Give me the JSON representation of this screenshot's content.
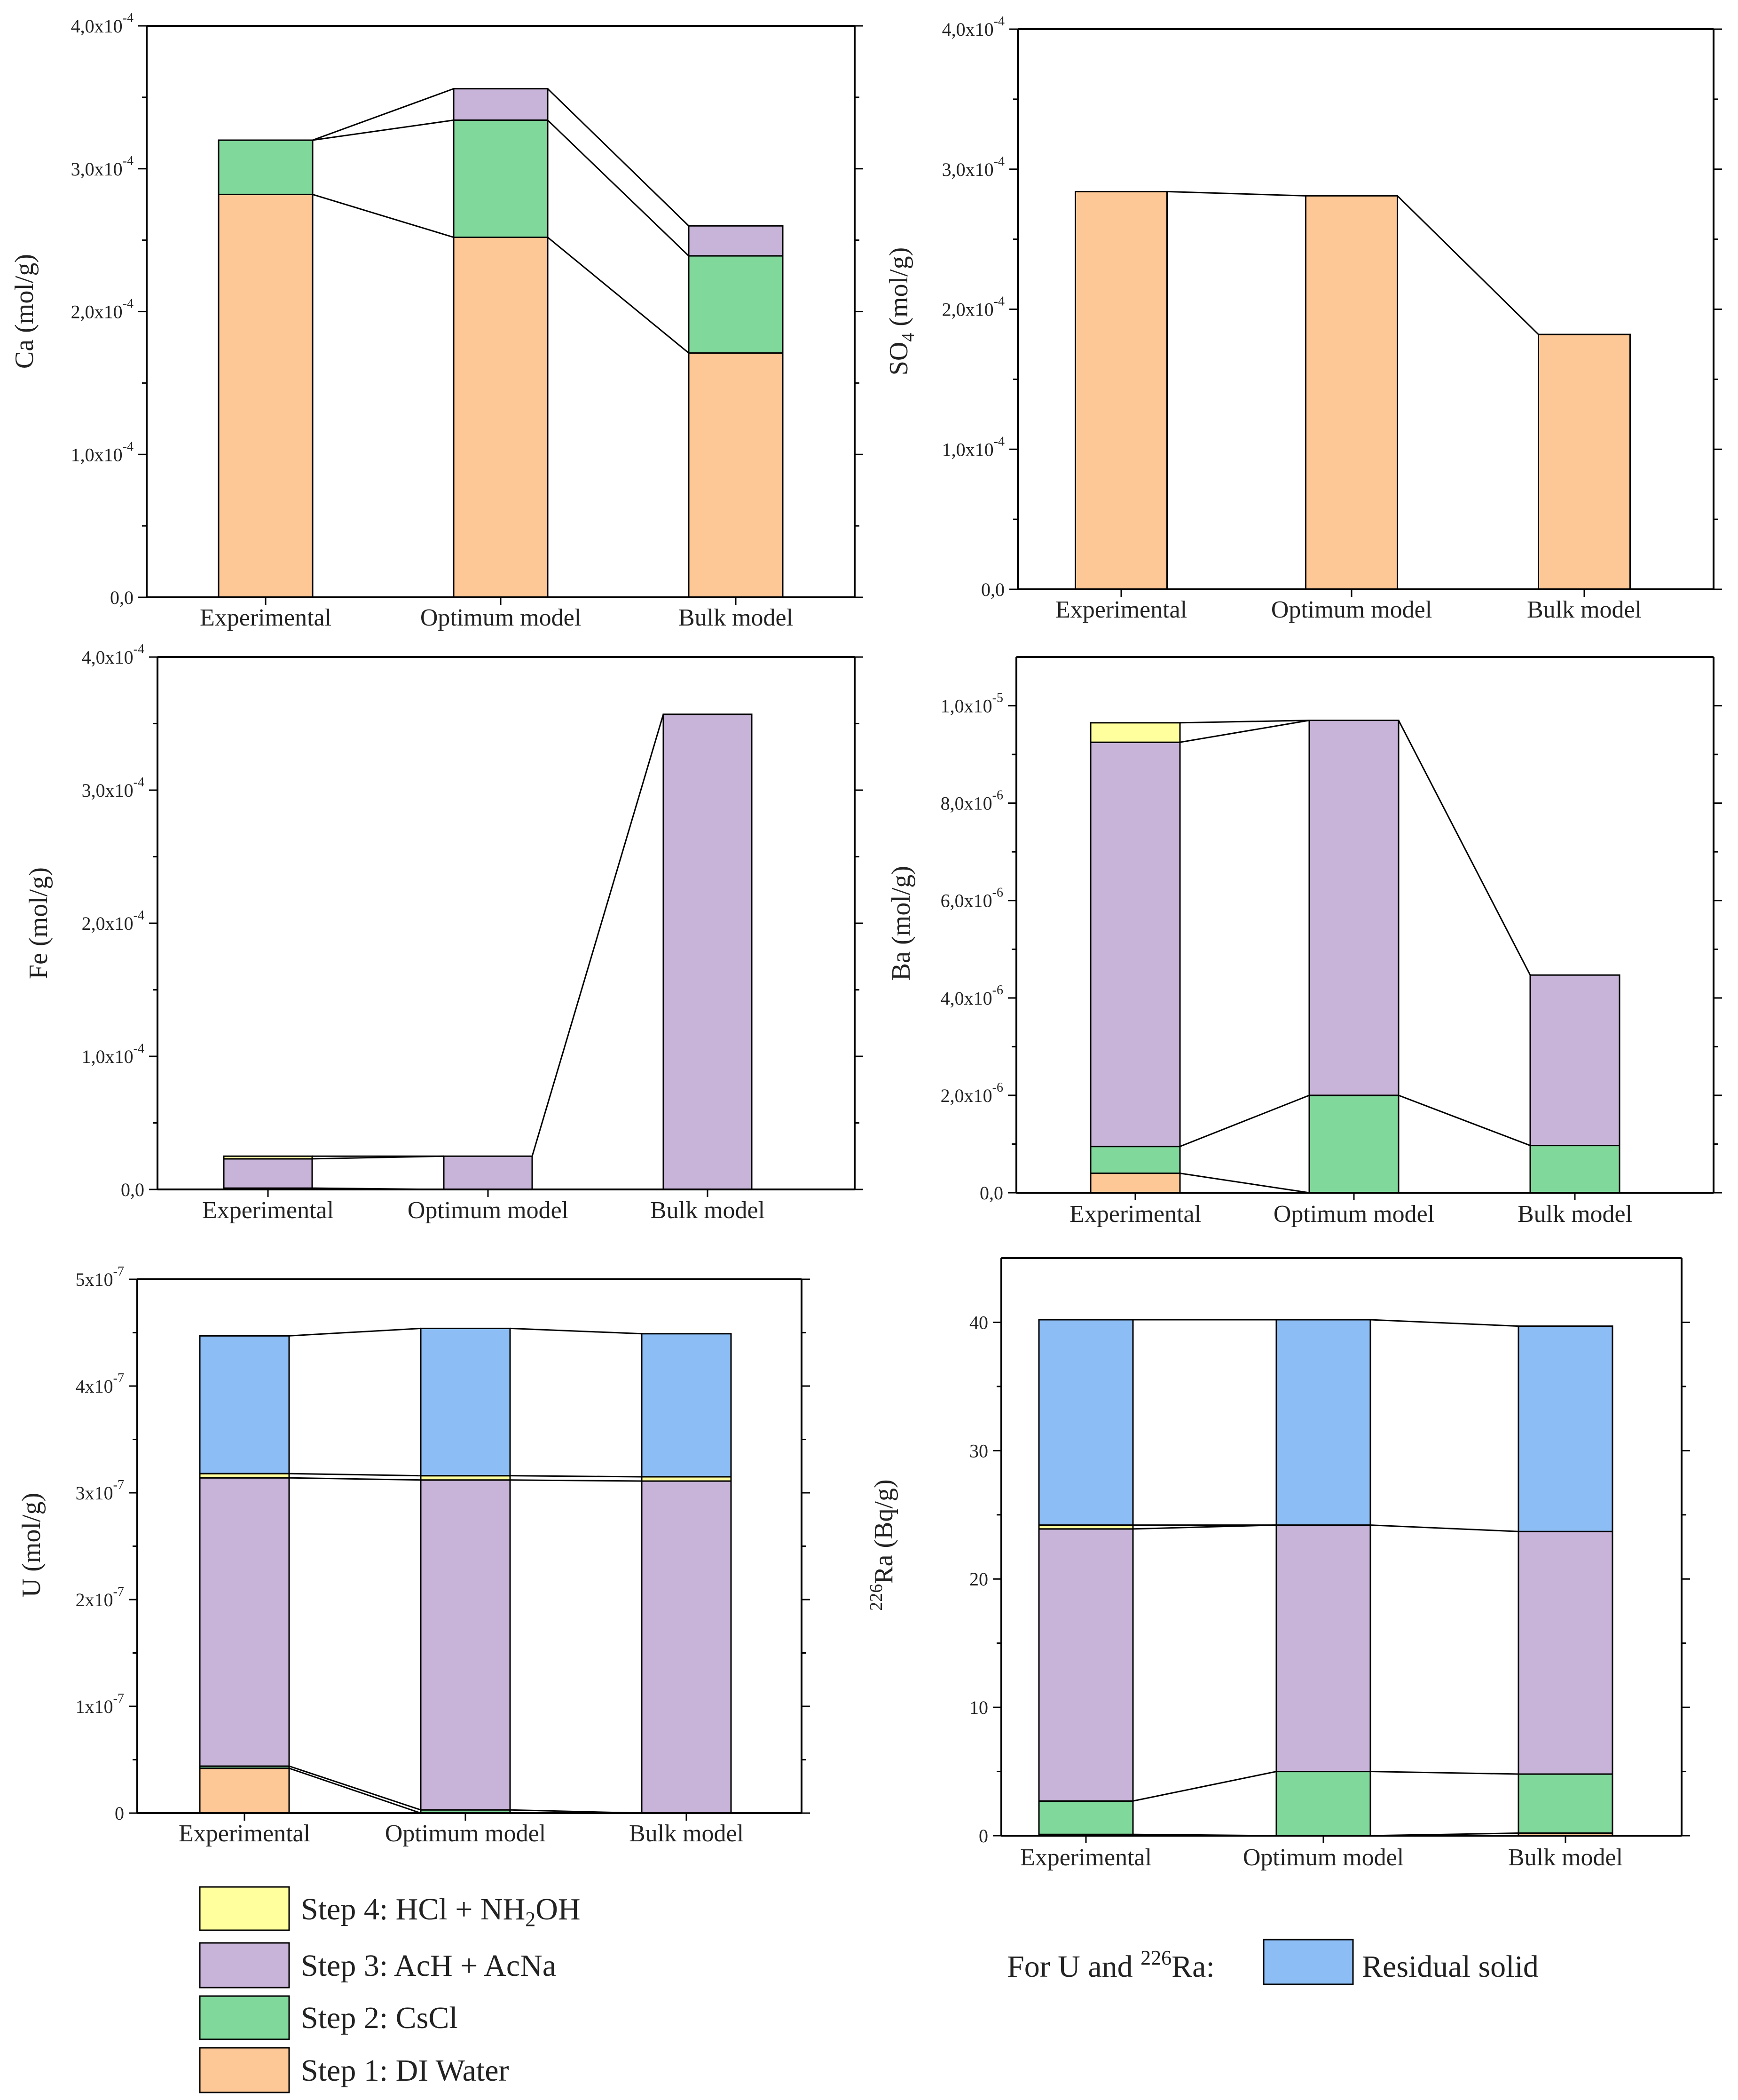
{
  "colors": {
    "step1": "#FDC895",
    "step2": "#80D89B",
    "step3": "#C8B4D8",
    "step4": "#FFFF9E",
    "residual": "#8CBDF4",
    "stroke": "#000000"
  },
  "chart_data": [
    {
      "id": "ca",
      "type": "bar",
      "stacked": true,
      "title": "",
      "ylabel": "Ca (mol/g)",
      "xlabel": "",
      "categories": [
        "Experimental",
        "Optimum model",
        "Bulk model"
      ],
      "ylim": [
        0,
        0.0004
      ],
      "yticks": [
        {
          "value": 0,
          "label": "0,0"
        },
        {
          "value": 0.0001,
          "label": "1,0x10",
          "exp": "-4"
        },
        {
          "value": 0.0002,
          "label": "2,0x10",
          "exp": "-4"
        },
        {
          "value": 0.0003,
          "label": "3,0x10",
          "exp": "-4"
        },
        {
          "value": 0.0004,
          "label": "4,0x10",
          "exp": "-4"
        }
      ],
      "series": [
        {
          "name": "Step 1: DI Water",
          "key": "step1",
          "values": [
            0.000282,
            0.000252,
            0.000171
          ]
        },
        {
          "name": "Step 2: CsCl",
          "key": "step2",
          "values": [
            3.8e-05,
            8.2e-05,
            6.8e-05
          ]
        },
        {
          "name": "Step 3: AcH + AcNa",
          "key": "step3",
          "values": [
            0,
            2.2e-05,
            2.1e-05
          ]
        }
      ]
    },
    {
      "id": "so4",
      "type": "bar",
      "stacked": true,
      "title": "",
      "ylabel": "SO",
      "ylabel_sub": "4",
      "ylabel_tail": " (mol/g)",
      "xlabel": "",
      "categories": [
        "Experimental",
        "Optimum model",
        "Bulk model"
      ],
      "ylim": [
        0,
        0.0004
      ],
      "yticks": [
        {
          "value": 0,
          "label": "0,0"
        },
        {
          "value": 0.0001,
          "label": "1,0x10",
          "exp": "-4"
        },
        {
          "value": 0.0002,
          "label": "2,0x10",
          "exp": "-4"
        },
        {
          "value": 0.0003,
          "label": "3,0x10",
          "exp": "-4"
        },
        {
          "value": 0.0004,
          "label": "4,0x10",
          "exp": "-4"
        }
      ],
      "series": [
        {
          "name": "Step 1: DI Water",
          "key": "step1",
          "values": [
            0.000284,
            0.000281,
            0.000182
          ]
        }
      ]
    },
    {
      "id": "fe",
      "type": "bar",
      "stacked": true,
      "title": "",
      "ylabel": "Fe (mol/g)",
      "xlabel": "",
      "categories": [
        "Experimental",
        "Optimum model",
        "Bulk model"
      ],
      "ylim": [
        0,
        0.0004
      ],
      "yticks": [
        {
          "value": 0,
          "label": "0,0"
        },
        {
          "value": 0.0001,
          "label": "1,0x10",
          "exp": "-4"
        },
        {
          "value": 0.0002,
          "label": "2,0x10",
          "exp": "-4"
        },
        {
          "value": 0.0003,
          "label": "3,0x10",
          "exp": "-4"
        },
        {
          "value": 0.0004,
          "label": "4,0x10",
          "exp": "-4"
        }
      ],
      "series": [
        {
          "name": "Step 1: DI Water",
          "key": "step1",
          "values": [
            1e-06,
            0,
            0
          ]
        },
        {
          "name": "Step 3: AcH + AcNa",
          "key": "step3",
          "values": [
            2.2e-05,
            2.5e-05,
            0.000357
          ]
        },
        {
          "name": "Step 4: HCl + NH2OH",
          "key": "step4",
          "values": [
            2e-06,
            0,
            0
          ]
        }
      ]
    },
    {
      "id": "ba",
      "type": "bar",
      "stacked": true,
      "title": "",
      "ylabel": "Ba (mol/g)",
      "xlabel": "",
      "categories": [
        "Experimental",
        "Optimum model",
        "Bulk model"
      ],
      "ylim": [
        0,
        1.1e-05
      ],
      "yticks": [
        {
          "value": 0,
          "label": "0,0"
        },
        {
          "value": 2e-06,
          "label": "2,0x10",
          "exp": "-6"
        },
        {
          "value": 4e-06,
          "label": "4,0x10",
          "exp": "-6"
        },
        {
          "value": 6e-06,
          "label": "6,0x10",
          "exp": "-6"
        },
        {
          "value": 8e-06,
          "label": "8,0x10",
          "exp": "-6"
        },
        {
          "value": 1e-05,
          "label": "1,0x10",
          "exp": "-5"
        }
      ],
      "series": [
        {
          "name": "Step 1: DI Water",
          "key": "step1",
          "values": [
            4e-07,
            0,
            0
          ]
        },
        {
          "name": "Step 2: CsCl",
          "key": "step2",
          "values": [
            5.5e-07,
            2e-06,
            9.7e-07
          ]
        },
        {
          "name": "Step 3: AcH + AcNa",
          "key": "step3",
          "values": [
            8.3e-06,
            7.7e-06,
            3.5e-06
          ]
        },
        {
          "name": "Step 4: HCl + NH2OH",
          "key": "step4",
          "values": [
            4e-07,
            0,
            0
          ]
        }
      ]
    },
    {
      "id": "u",
      "type": "bar",
      "stacked": true,
      "title": "",
      "ylabel": "U (mol/g)",
      "xlabel": "",
      "categories": [
        "Experimental",
        "Optimum model",
        "Bulk model"
      ],
      "ylim": [
        0,
        5e-07
      ],
      "yticks": [
        {
          "value": 0,
          "label": "0"
        },
        {
          "value": 1e-07,
          "label": "1x10",
          "exp": "-7"
        },
        {
          "value": 2e-07,
          "label": "2x10",
          "exp": "-7"
        },
        {
          "value": 3e-07,
          "label": "3x10",
          "exp": "-7"
        },
        {
          "value": 4e-07,
          "label": "4x10",
          "exp": "-7"
        },
        {
          "value": 5e-07,
          "label": "5x10",
          "exp": "-7"
        }
      ],
      "series": [
        {
          "name": "Step 1: DI Water",
          "key": "step1",
          "values": [
            4.2e-08,
            0,
            0
          ]
        },
        {
          "name": "Step 2: CsCl",
          "key": "step2",
          "values": [
            2e-09,
            3e-09,
            0
          ]
        },
        {
          "name": "Step 3: AcH + AcNa",
          "key": "step3",
          "values": [
            2.7e-07,
            3.09e-07,
            3.11e-07
          ]
        },
        {
          "name": "Step 4: HCl + NH2OH",
          "key": "step4",
          "values": [
            4e-09,
            4e-09,
            4e-09
          ]
        },
        {
          "name": "Residual solid",
          "key": "residual",
          "values": [
            1.29e-07,
            1.38e-07,
            1.34e-07
          ]
        }
      ]
    },
    {
      "id": "ra226",
      "type": "bar",
      "stacked": true,
      "title": "",
      "ylabel_sup": "226",
      "ylabel": "Ra (Bq/g)",
      "xlabel": "",
      "categories": [
        "Experimental",
        "Optimum model",
        "Bulk model"
      ],
      "ylim": [
        0,
        45
      ],
      "yticks": [
        {
          "value": 0,
          "label": "0"
        },
        {
          "value": 10,
          "label": "10"
        },
        {
          "value": 20,
          "label": "20"
        },
        {
          "value": 30,
          "label": "30"
        },
        {
          "value": 40,
          "label": "40"
        }
      ],
      "series": [
        {
          "name": "Step 1: DI Water",
          "key": "step1",
          "values": [
            0.1,
            0,
            0.2
          ]
        },
        {
          "name": "Step 2: CsCl",
          "key": "step2",
          "values": [
            2.6,
            5.0,
            4.6
          ]
        },
        {
          "name": "Step 3: AcH + AcNa",
          "key": "step3",
          "values": [
            21.2,
            19.2,
            18.9
          ]
        },
        {
          "name": "Step 4: HCl + NH2OH",
          "key": "step4",
          "values": [
            0.3,
            0,
            0
          ]
        },
        {
          "name": "Residual solid",
          "key": "residual",
          "values": [
            16.0,
            16.0,
            16.0
          ]
        }
      ]
    }
  ],
  "legend": {
    "items": [
      {
        "key": "step4",
        "label": "Step 4: HCl + NH",
        "sub": "2",
        "tail": "OH"
      },
      {
        "key": "step3",
        "label": "Step 3: AcH + AcNa"
      },
      {
        "key": "step2",
        "label": "Step 2: CsCl"
      },
      {
        "key": "step1",
        "label": "Step 1: DI Water"
      }
    ],
    "residual_prefix": "For U and ",
    "residual_prefix_sup": "226",
    "residual_prefix_tail": "Ra:",
    "residual_label": "Residual solid"
  }
}
